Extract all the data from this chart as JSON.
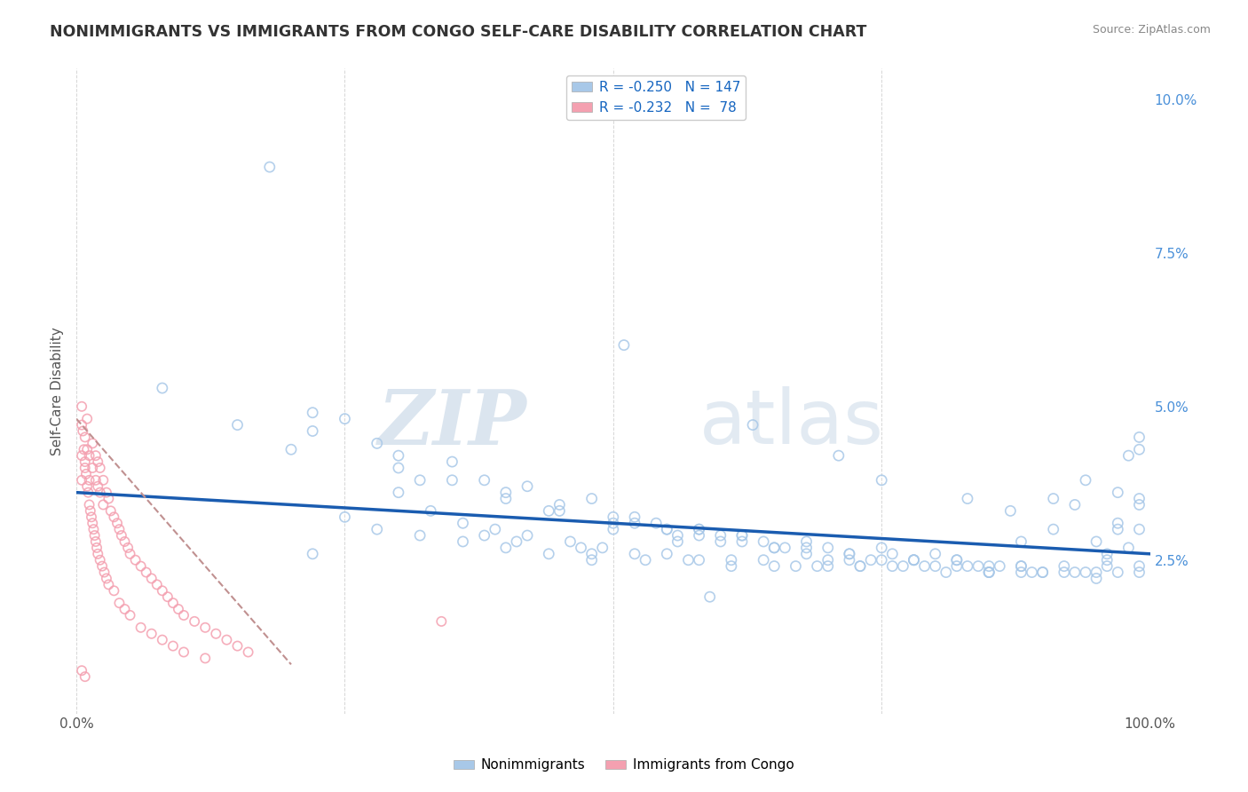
{
  "title": "NONIMMIGRANTS VS IMMIGRANTS FROM CONGO SELF-CARE DISABILITY CORRELATION CHART",
  "source": "Source: ZipAtlas.com",
  "ylabel": "Self-Care Disability",
  "xlim": [
    0,
    1.0
  ],
  "ylim": [
    0,
    0.105
  ],
  "legend_R_blue": "-0.250",
  "legend_N_blue": "147",
  "legend_R_pink": "-0.232",
  "legend_N_pink": "78",
  "blue_color": "#A8C8E8",
  "pink_color": "#F4A0B0",
  "blue_line_color": "#1A5CB0",
  "pink_line_color": "#C09090",
  "watermark_zip": "ZIP",
  "watermark_atlas": "atlas",
  "background_color": "#FFFFFF",
  "grid_color": "#CCCCCC",
  "blue_scatter_x": [
    0.18,
    0.08,
    0.15,
    0.22,
    0.22,
    0.25,
    0.2,
    0.28,
    0.3,
    0.35,
    0.38,
    0.32,
    0.42,
    0.4,
    0.48,
    0.45,
    0.44,
    0.5,
    0.52,
    0.5,
    0.55,
    0.56,
    0.58,
    0.6,
    0.58,
    0.62,
    0.65,
    0.62,
    0.68,
    0.7,
    0.68,
    0.72,
    0.75,
    0.72,
    0.78,
    0.8,
    0.78,
    0.82,
    0.85,
    0.83,
    0.88,
    0.9,
    0.88,
    0.92,
    0.95,
    0.93,
    0.96,
    0.97,
    0.99,
    0.98,
    0.3,
    0.35,
    0.4,
    0.45,
    0.5,
    0.55,
    0.6,
    0.65,
    0.7,
    0.75,
    0.8,
    0.85,
    0.9,
    0.95,
    0.99,
    0.52,
    0.54,
    0.56,
    0.58,
    0.62,
    0.64,
    0.66,
    0.68,
    0.72,
    0.74,
    0.76,
    0.78,
    0.82,
    0.84,
    0.86,
    0.88,
    0.92,
    0.94,
    0.96,
    0.98,
    0.99,
    0.3,
    0.33,
    0.36,
    0.39,
    0.42,
    0.46,
    0.49,
    0.52,
    0.55,
    0.58,
    0.61,
    0.64,
    0.67,
    0.7,
    0.73,
    0.76,
    0.79,
    0.82,
    0.85,
    0.88,
    0.91,
    0.94,
    0.97,
    0.99,
    0.25,
    0.28,
    0.32,
    0.36,
    0.4,
    0.44,
    0.48,
    0.53,
    0.57,
    0.61,
    0.65,
    0.69,
    0.73,
    0.77,
    0.81,
    0.85,
    0.89,
    0.93,
    0.97,
    0.99,
    0.38,
    0.41,
    0.47,
    0.51,
    0.59,
    0.63,
    0.71,
    0.75,
    0.83,
    0.87,
    0.91,
    0.95,
    0.22,
    0.48,
    0.99,
    0.99,
    0.97,
    0.96,
    0.95,
    0.94,
    0.98,
    0.97,
    0.96,
    0.99,
    0.85,
    0.87,
    0.91
  ],
  "blue_scatter_y": [
    0.089,
    0.053,
    0.047,
    0.049,
    0.046,
    0.048,
    0.043,
    0.044,
    0.042,
    0.041,
    0.038,
    0.038,
    0.037,
    0.035,
    0.035,
    0.034,
    0.033,
    0.032,
    0.031,
    0.03,
    0.03,
    0.028,
    0.029,
    0.028,
    0.03,
    0.028,
    0.027,
    0.029,
    0.028,
    0.027,
    0.026,
    0.026,
    0.027,
    0.025,
    0.025,
    0.026,
    0.025,
    0.025,
    0.024,
    0.024,
    0.024,
    0.023,
    0.024,
    0.024,
    0.023,
    0.023,
    0.026,
    0.03,
    0.045,
    0.042,
    0.04,
    0.038,
    0.036,
    0.033,
    0.031,
    0.03,
    0.029,
    0.027,
    0.025,
    0.025,
    0.024,
    0.023,
    0.023,
    0.022,
    0.043,
    0.032,
    0.031,
    0.029,
    0.03,
    0.029,
    0.028,
    0.027,
    0.027,
    0.026,
    0.025,
    0.026,
    0.025,
    0.025,
    0.024,
    0.024,
    0.023,
    0.023,
    0.023,
    0.025,
    0.027,
    0.035,
    0.036,
    0.033,
    0.031,
    0.03,
    0.029,
    0.028,
    0.027,
    0.026,
    0.026,
    0.025,
    0.025,
    0.025,
    0.024,
    0.024,
    0.024,
    0.024,
    0.024,
    0.024,
    0.023,
    0.028,
    0.035,
    0.038,
    0.036,
    0.034,
    0.032,
    0.03,
    0.029,
    0.028,
    0.027,
    0.026,
    0.026,
    0.025,
    0.025,
    0.024,
    0.024,
    0.024,
    0.024,
    0.024,
    0.023,
    0.023,
    0.023,
    0.034,
    0.031,
    0.03,
    0.029,
    0.028,
    0.027,
    0.06,
    0.019,
    0.047,
    0.042,
    0.038,
    0.035,
    0.033,
    0.03,
    0.028,
    0.026,
    0.025,
    0.024,
    0.023,
    0.023,
    0.024
  ],
  "pink_scatter_x": [
    0.005,
    0.005,
    0.005,
    0.008,
    0.008,
    0.01,
    0.01,
    0.012,
    0.012,
    0.015,
    0.015,
    0.018,
    0.018,
    0.02,
    0.02,
    0.022,
    0.022,
    0.025,
    0.025,
    0.028,
    0.03,
    0.032,
    0.035,
    0.038,
    0.04,
    0.042,
    0.045,
    0.048,
    0.05,
    0.055,
    0.06,
    0.065,
    0.07,
    0.075,
    0.08,
    0.085,
    0.09,
    0.095,
    0.1,
    0.11,
    0.12,
    0.13,
    0.14,
    0.15,
    0.16,
    0.34,
    0.005,
    0.006,
    0.007,
    0.008,
    0.009,
    0.01,
    0.011,
    0.012,
    0.013,
    0.014,
    0.015,
    0.016,
    0.017,
    0.018,
    0.019,
    0.02,
    0.022,
    0.024,
    0.026,
    0.028,
    0.03,
    0.035,
    0.04,
    0.045,
    0.05,
    0.06,
    0.07,
    0.08,
    0.09,
    0.1,
    0.12,
    0.005,
    0.008
  ],
  "pink_scatter_y": [
    0.047,
    0.042,
    0.038,
    0.045,
    0.04,
    0.048,
    0.043,
    0.042,
    0.038,
    0.044,
    0.04,
    0.042,
    0.038,
    0.041,
    0.037,
    0.04,
    0.036,
    0.038,
    0.034,
    0.036,
    0.035,
    0.033,
    0.032,
    0.031,
    0.03,
    0.029,
    0.028,
    0.027,
    0.026,
    0.025,
    0.024,
    0.023,
    0.022,
    0.021,
    0.02,
    0.019,
    0.018,
    0.017,
    0.016,
    0.015,
    0.014,
    0.013,
    0.012,
    0.011,
    0.01,
    0.015,
    0.05,
    0.046,
    0.043,
    0.041,
    0.039,
    0.037,
    0.036,
    0.034,
    0.033,
    0.032,
    0.031,
    0.03,
    0.029,
    0.028,
    0.027,
    0.026,
    0.025,
    0.024,
    0.023,
    0.022,
    0.021,
    0.02,
    0.018,
    0.017,
    0.016,
    0.014,
    0.013,
    0.012,
    0.011,
    0.01,
    0.009,
    0.007,
    0.006
  ],
  "blue_line_x": [
    0,
    1.0
  ],
  "blue_line_y": [
    0.036,
    0.026
  ],
  "pink_line_x": [
    0,
    0.2
  ],
  "pink_line_y": [
    0.048,
    0.008
  ]
}
